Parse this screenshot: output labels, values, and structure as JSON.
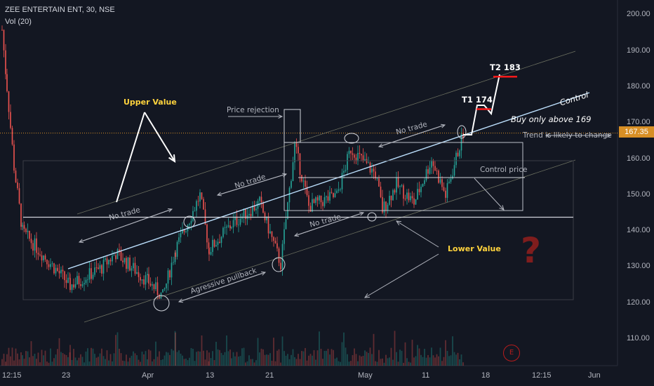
{
  "header": {
    "title": "ZEE ENTERTAIN ENT, 30, NSE",
    "indicator": "Vol (20)"
  },
  "price_axis": {
    "labels": [
      "200.00",
      "190.00",
      "180.00",
      "170.00",
      "160.00",
      "150.00",
      "140.00",
      "130.00",
      "120.00",
      "110.00"
    ]
  },
  "last_price": "167.35",
  "time_axis": {
    "labels": [
      "12:15",
      "23",
      "Apr",
      "13",
      "21",
      "May",
      "11",
      "18",
      "12:15",
      "Jun"
    ]
  },
  "annotations": {
    "upper_value": "Upper Value",
    "lower_value": "Lower Value",
    "price_rejection": "Price rejection",
    "no_trade": "No trade",
    "agressive_pullback": "Agressive pullback",
    "control_price": "Control price",
    "control": "Control",
    "buy_only": "Buy only above 169",
    "trend_change": "Trend is likely to change",
    "t1": "T1 174",
    "t2": "T2 183",
    "question": "?",
    "events": "E"
  },
  "colors": {
    "background": "#131722",
    "up": "#26a69a",
    "down": "#ef5350",
    "price_line": "#d88f25",
    "control_line": "#bbdefb",
    "target": "#ff1a1a",
    "annotation_yellow": "#ffd33d"
  },
  "chart_data": {
    "type": "candlestick",
    "symbol": "ZEE ENTERTAIN ENT",
    "interval": "30",
    "exchange": "NSE",
    "ylim": [
      104,
      203
    ],
    "last_price": 167.35,
    "key_levels": {
      "control_price": 155,
      "lower_value_support": 144,
      "buy_above": 169,
      "t1": 174,
      "t2": 183
    },
    "swing_path": [
      {
        "x": "12:15",
        "y": 196
      },
      {
        "x": "",
        "y": 180
      },
      {
        "x": "",
        "y": 158
      },
      {
        "x": "",
        "y": 140
      },
      {
        "x": "23",
        "y": 125
      },
      {
        "x": "",
        "y": 130
      },
      {
        "x": "",
        "y": 134
      },
      {
        "x": "",
        "y": 126
      },
      {
        "x": "Apr",
        "y": 122
      },
      {
        "x": "",
        "y": 135
      },
      {
        "x": "",
        "y": 150
      },
      {
        "x": "13",
        "y": 135
      },
      {
        "x": "",
        "y": 142
      },
      {
        "x": "",
        "y": 148
      },
      {
        "x": "21",
        "y": 131
      },
      {
        "x": "",
        "y": 164
      },
      {
        "x": "",
        "y": 147
      },
      {
        "x": "",
        "y": 150
      },
      {
        "x": "",
        "y": 163
      },
      {
        "x": "",
        "y": 156
      },
      {
        "x": "May",
        "y": 146
      },
      {
        "x": "",
        "y": 153
      },
      {
        "x": "",
        "y": 148
      },
      {
        "x": "11",
        "y": 160
      },
      {
        "x": "",
        "y": 150
      },
      {
        "x": "",
        "y": 167.35
      }
    ]
  }
}
